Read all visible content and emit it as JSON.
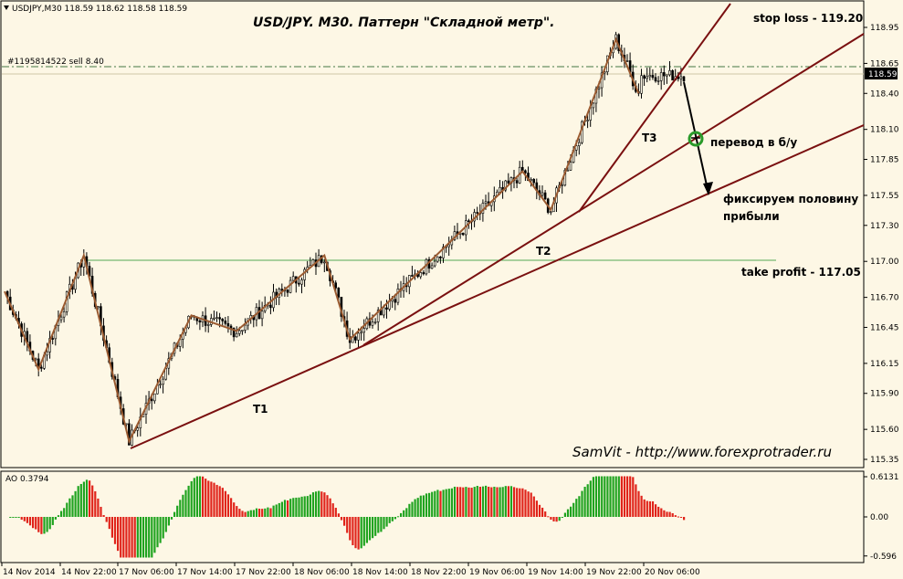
{
  "header": {
    "symbol_line": "USDJPY,M30  118.59 118.62 118.58 118.59",
    "order_label": "#1195814522 sell 8.40"
  },
  "title": "USD/JPY. M30. Паттерн \"Складной метр\".",
  "signature": "SamVit - http://www.forexprotrader.ru",
  "annotations": {
    "stop_loss": "stop loss - 119.20",
    "take_profit": "take profit - 117.05",
    "breakeven": "перевод в б/у",
    "fix_half_line1": "фиксируем половину",
    "fix_half_line2": "прибыли",
    "t1": "T1",
    "t2": "T2",
    "t3": "T3"
  },
  "colors": {
    "background": "#fdf7e5",
    "bull_bar": "#1fa31f",
    "bear_bar": "#e0231a",
    "trend_line": "#7a1010",
    "zigzag": "#9a5a30",
    "take_profit_line": "#55aa55",
    "order_line": "#447744",
    "price_box": "#000000",
    "breakeven_circle": "#2a9a2a"
  },
  "chart_data": [
    {
      "type": "candlestick",
      "symbol": "USDJPY",
      "timeframe": "M30",
      "ohlc_last": {
        "open": 118.59,
        "high": 118.62,
        "low": 118.58,
        "close": 118.59
      },
      "current_price_label": "118.59",
      "y_ticks": [
        "118.95",
        "118.65",
        "118.40",
        "118.10",
        "117.85",
        "117.55",
        "117.30",
        "117.00",
        "116.70",
        "116.45",
        "116.15",
        "115.90",
        "115.60",
        "115.35"
      ],
      "ylim": [
        115.3,
        119.1
      ],
      "x_ticks": [
        "14 Nov 2014",
        "14 Nov 22:00",
        "17 Nov 06:00",
        "17 Nov 14:00",
        "17 Nov 22:00",
        "18 Nov 06:00",
        "18 Nov 14:00",
        "18 Nov 22:00",
        "19 Nov 06:00",
        "19 Nov 14:00",
        "19 Nov 22:00",
        "20 Nov 06:00"
      ],
      "levels": {
        "stop_loss": 119.2,
        "take_profit": 117.05,
        "sell_entry": 118.65
      },
      "zigzag": [
        {
          "i": 0,
          "p": 116.75
        },
        {
          "i": 12,
          "p": 116.1
        },
        {
          "i": 28,
          "p": 117.05
        },
        {
          "i": 44,
          "p": 115.5
        },
        {
          "i": 66,
          "p": 116.55
        },
        {
          "i": 82,
          "p": 116.42
        },
        {
          "i": 113,
          "p": 117.05
        },
        {
          "i": 122,
          "p": 116.35
        },
        {
          "i": 183,
          "p": 117.75
        },
        {
          "i": 193,
          "p": 117.43
        },
        {
          "i": 216,
          "p": 118.85
        },
        {
          "i": 224,
          "p": 118.4
        }
      ],
      "trend_lines": [
        {
          "name": "T1",
          "from": {
            "i": 44,
            "p": 115.5
          },
          "through": {
            "i": 122,
            "p": 116.35
          }
        },
        {
          "name": "T2",
          "from": {
            "i": 122,
            "p": 116.35
          },
          "through": {
            "i": 193,
            "p": 117.43
          }
        },
        {
          "name": "T3",
          "from": {
            "i": 193,
            "p": 117.43
          },
          "through": {
            "i": 224,
            "p": 118.4
          }
        }
      ]
    },
    {
      "type": "bar",
      "name": "AO",
      "value_label": "AO 0.3794",
      "y_ticks": [
        "0.6131",
        "0.00",
        "-0.596"
      ],
      "ylim": [
        -0.7,
        0.7
      ]
    }
  ]
}
